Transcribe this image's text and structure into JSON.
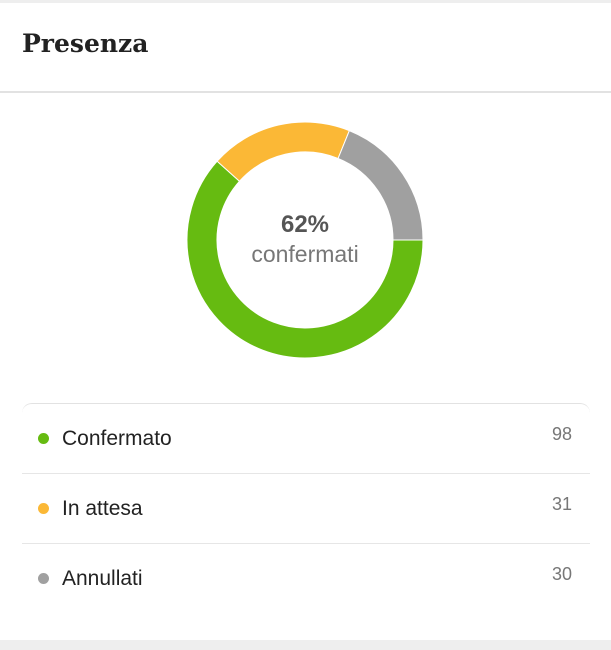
{
  "header": {
    "title": "Presenza"
  },
  "summary": {
    "percent": "62%",
    "label": "confermati"
  },
  "chart_data": {
    "type": "pie",
    "donut": true,
    "start_angle_deg": 90,
    "direction": "clockwise",
    "categories": [
      "Confermato",
      "In attesa",
      "Annullati"
    ],
    "values": [
      98,
      31,
      30
    ],
    "colors": [
      "#66bb11",
      "#fbb836",
      "#a0a0a0"
    ]
  },
  "legend": [
    {
      "label": "Confermato",
      "count": "98",
      "color": "#66bb11"
    },
    {
      "label": "In attesa",
      "count": "31",
      "color": "#fbb836"
    },
    {
      "label": "Annullati",
      "count": "30",
      "color": "#a0a0a0"
    }
  ]
}
